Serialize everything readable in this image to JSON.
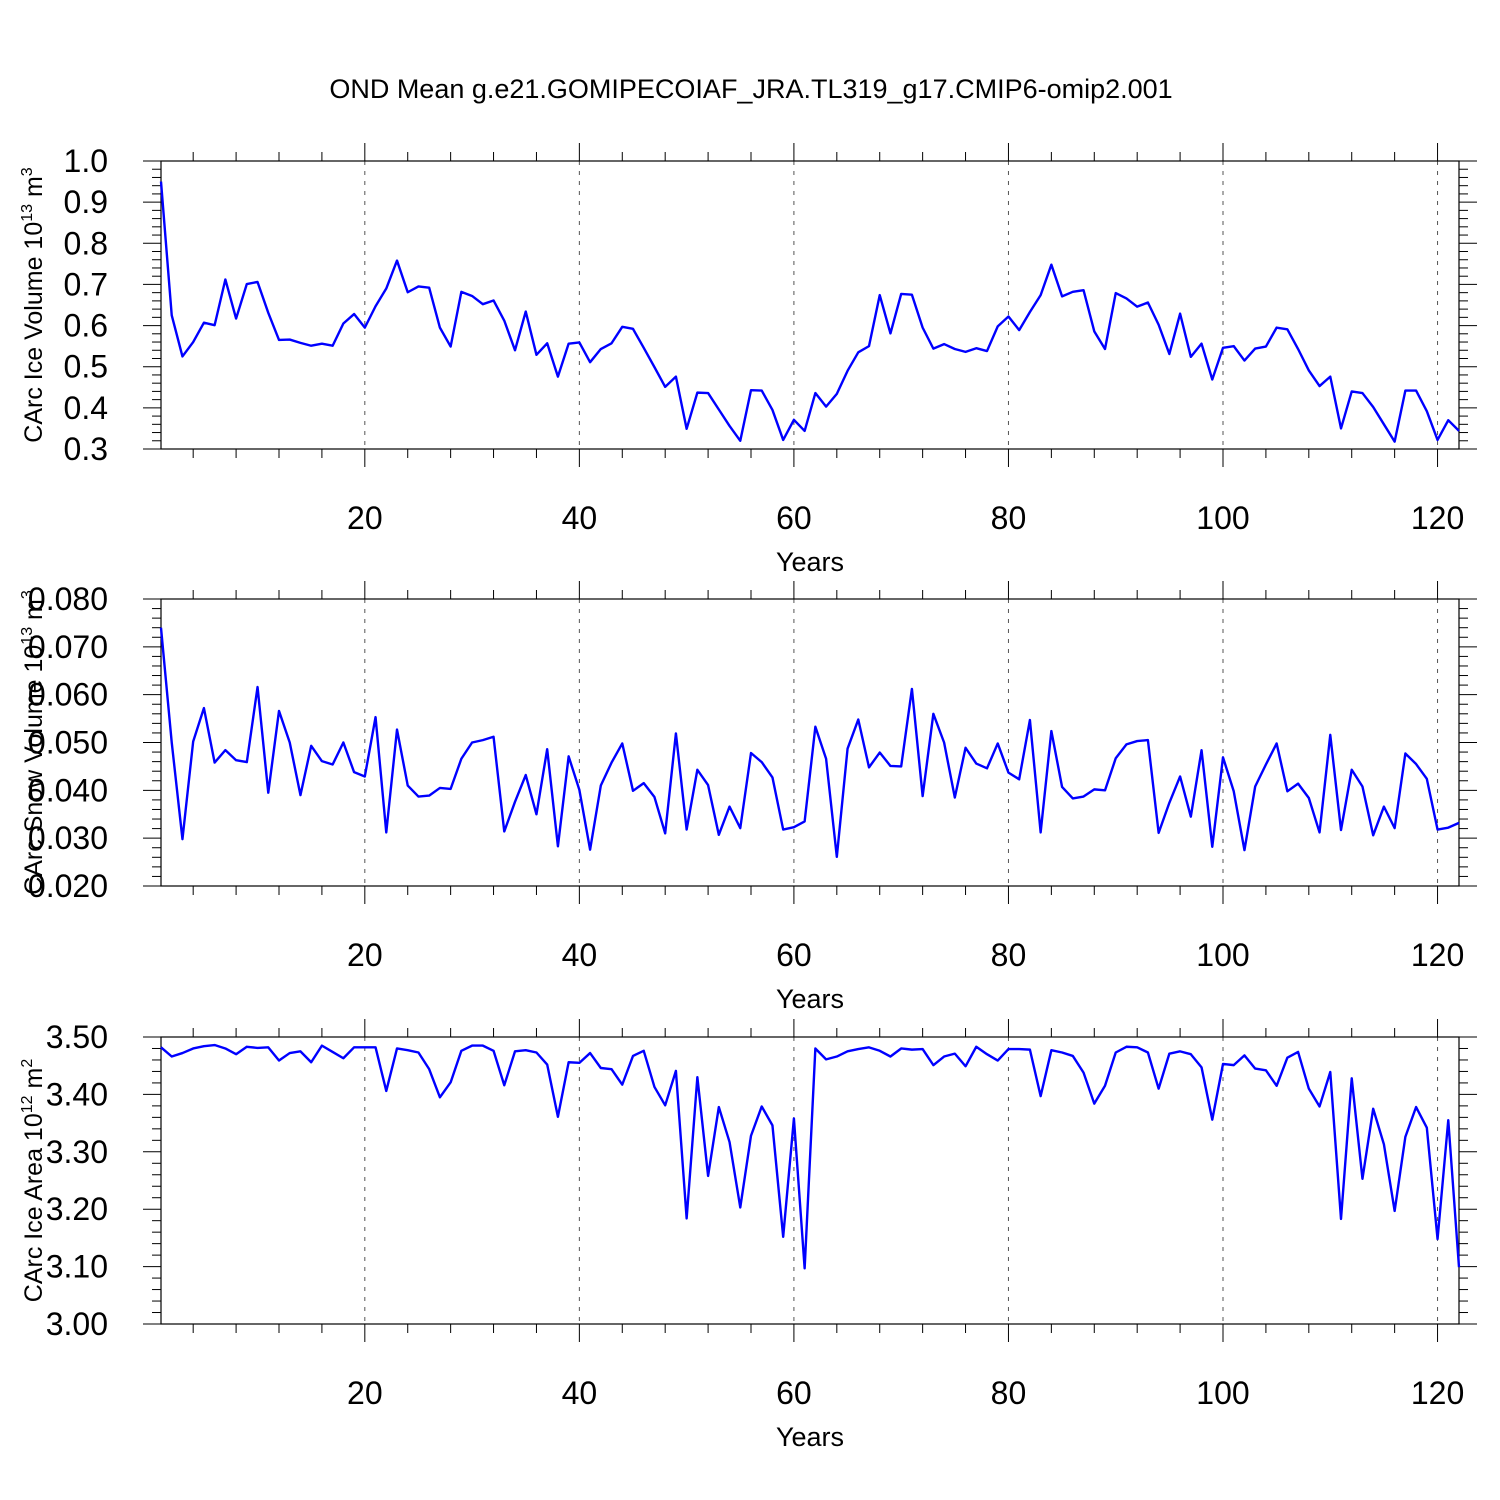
{
  "title": "OND Mean g.e21.GOMIPECOIAF_JRA.TL319_g17.CMIP6-omip2.001",
  "line_color": "#0000ff",
  "chart_data": [
    {
      "type": "line",
      "name": "volume",
      "ylabel": "CArc Ice Volume 10",
      "ylabel_exp": "13",
      "ylabel_unit": " m",
      "ylabel_unit_exp": "3",
      "xlabel": "Years",
      "xlim": [
        1,
        122
      ],
      "ylim": [
        0.3,
        1.0
      ],
      "x_ticks": [
        20,
        40,
        60,
        80,
        100,
        120
      ],
      "y_ticks": [
        "0.3",
        "0.4",
        "0.5",
        "0.6",
        "0.7",
        "0.8",
        "0.9",
        "1.0"
      ],
      "x_start": 1,
      "values": [
        0.95,
        0.625,
        0.525,
        0.56,
        0.607,
        0.601,
        0.712,
        0.617,
        0.701,
        0.706,
        0.631,
        0.565,
        0.566,
        0.558,
        0.551,
        0.556,
        0.551,
        0.605,
        0.628,
        0.595,
        0.647,
        0.69,
        0.758,
        0.681,
        0.695,
        0.692,
        0.595,
        0.549,
        0.682,
        0.672,
        0.652,
        0.661,
        0.612,
        0.54,
        0.634,
        0.529,
        0.557,
        0.476,
        0.556,
        0.559,
        0.511,
        0.543,
        0.557,
        0.597,
        0.592,
        0.546,
        0.499,
        0.451,
        0.476,
        0.349,
        0.437,
        0.436,
        0.396,
        0.356,
        0.32,
        0.443,
        0.442,
        0.395,
        0.322,
        0.371,
        0.344,
        0.436,
        0.403,
        0.434,
        0.49,
        0.535,
        0.55,
        0.674,
        0.581,
        0.677,
        0.675,
        0.595,
        0.544,
        0.555,
        0.543,
        0.536,
        0.545,
        0.538,
        0.598,
        0.622,
        0.589,
        0.633,
        0.674,
        0.748,
        0.671,
        0.682,
        0.686,
        0.586,
        0.543,
        0.679,
        0.666,
        0.646,
        0.656,
        0.602,
        0.531,
        0.629,
        0.524,
        0.556,
        0.469,
        0.546,
        0.55,
        0.515,
        0.544,
        0.549,
        0.595,
        0.591,
        0.543,
        0.491,
        0.453,
        0.476,
        0.35,
        0.44,
        0.436,
        0.402,
        0.36,
        0.318,
        0.442,
        0.442,
        0.392,
        0.322,
        0.37,
        0.344
      ]
    },
    {
      "type": "line",
      "name": "snow",
      "ylabel": "CArc Snow Volume 10",
      "ylabel_exp": "13",
      "ylabel_unit": " m",
      "ylabel_unit_exp": "3",
      "xlabel": "Years",
      "xlim": [
        1,
        122
      ],
      "ylim": [
        0.02,
        0.08
      ],
      "x_ticks": [
        20,
        40,
        60,
        80,
        100,
        120
      ],
      "y_ticks": [
        "0.020",
        "0.030",
        "0.040",
        "0.050",
        "0.060",
        "0.070",
        "0.080"
      ],
      "x_start": 1,
      "values": [
        0.074,
        0.05,
        0.0298,
        0.0502,
        0.0572,
        0.0458,
        0.0484,
        0.0463,
        0.0459,
        0.0616,
        0.0395,
        0.0566,
        0.05,
        0.039,
        0.0493,
        0.0461,
        0.0454,
        0.05,
        0.0438,
        0.0429,
        0.0553,
        0.0312,
        0.0527,
        0.041,
        0.0387,
        0.0389,
        0.0405,
        0.0403,
        0.0466,
        0.05,
        0.0505,
        0.0512,
        0.0314,
        0.0376,
        0.0432,
        0.035,
        0.0486,
        0.0283,
        0.0471,
        0.0401,
        0.0276,
        0.041,
        0.0458,
        0.0498,
        0.0399,
        0.0415,
        0.0386,
        0.031,
        0.0519,
        0.0318,
        0.0443,
        0.0411,
        0.0307,
        0.0366,
        0.0321,
        0.0478,
        0.0459,
        0.0427,
        0.0318,
        0.0323,
        0.0335,
        0.0533,
        0.0466,
        0.0261,
        0.0487,
        0.0548,
        0.0448,
        0.0479,
        0.0451,
        0.045,
        0.0612,
        0.0388,
        0.056,
        0.05,
        0.0385,
        0.0489,
        0.0456,
        0.0446,
        0.0498,
        0.0437,
        0.0423,
        0.0547,
        0.0312,
        0.0524,
        0.0407,
        0.0383,
        0.0387,
        0.0402,
        0.04,
        0.0467,
        0.0496,
        0.0503,
        0.0505,
        0.0311,
        0.0374,
        0.0429,
        0.0345,
        0.0484,
        0.0282,
        0.0469,
        0.0398,
        0.0275,
        0.0408,
        0.0454,
        0.0498,
        0.0398,
        0.0414,
        0.0384,
        0.0312,
        0.0516,
        0.0317,
        0.0443,
        0.0408,
        0.0306,
        0.0366,
        0.0321,
        0.0477,
        0.0455,
        0.0424,
        0.0318,
        0.0322,
        0.0332
      ]
    },
    {
      "type": "line",
      "name": "area",
      "ylabel": "CArc Ice Area 10",
      "ylabel_exp": "12",
      "ylabel_unit": " m",
      "ylabel_unit_exp": "2",
      "xlabel": "Years",
      "xlim": [
        1,
        122
      ],
      "ylim": [
        3.0,
        3.5
      ],
      "x_ticks": [
        20,
        40,
        60,
        80,
        100,
        120
      ],
      "y_ticks": [
        "3.00",
        "3.10",
        "3.20",
        "3.30",
        "3.40",
        "3.50"
      ],
      "x_start": 1,
      "values": [
        3.482,
        3.466,
        3.472,
        3.48,
        3.484,
        3.486,
        3.48,
        3.47,
        3.483,
        3.481,
        3.482,
        3.459,
        3.472,
        3.475,
        3.456,
        3.485,
        3.474,
        3.463,
        3.482,
        3.482,
        3.482,
        3.406,
        3.48,
        3.477,
        3.473,
        3.444,
        3.395,
        3.421,
        3.476,
        3.485,
        3.485,
        3.476,
        3.416,
        3.475,
        3.477,
        3.473,
        3.452,
        3.361,
        3.456,
        3.455,
        3.472,
        3.446,
        3.444,
        3.417,
        3.467,
        3.476,
        3.413,
        3.381,
        3.441,
        3.184,
        3.43,
        3.258,
        3.378,
        3.317,
        3.203,
        3.328,
        3.379,
        3.346,
        3.152,
        3.358,
        3.097,
        3.48,
        3.461,
        3.466,
        3.475,
        3.479,
        3.482,
        3.476,
        3.466,
        3.48,
        3.478,
        3.479,
        3.451,
        3.466,
        3.471,
        3.449,
        3.483,
        3.47,
        3.459,
        3.479,
        3.479,
        3.478,
        3.397,
        3.477,
        3.473,
        3.467,
        3.438,
        3.384,
        3.415,
        3.473,
        3.483,
        3.482,
        3.473,
        3.41,
        3.471,
        3.475,
        3.47,
        3.447,
        3.356,
        3.453,
        3.451,
        3.468,
        3.445,
        3.442,
        3.415,
        3.464,
        3.474,
        3.41,
        3.379,
        3.439,
        3.183,
        3.428,
        3.253,
        3.375,
        3.313,
        3.197,
        3.326,
        3.378,
        3.342,
        3.148,
        3.355,
        3.099
      ]
    }
  ]
}
